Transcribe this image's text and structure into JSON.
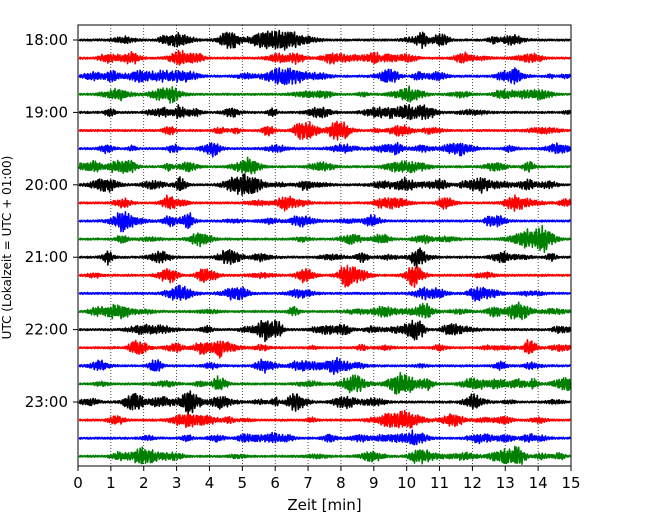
{
  "chart_data": {
    "type": "line",
    "title": "",
    "xlabel": "Zeit  [min]",
    "ylabel": "UTC (Lokalzeit = UTC + 01:00)",
    "xlim": [
      0,
      15
    ],
    "x_ticks": [
      "0",
      "1",
      "2",
      "3",
      "4",
      "5",
      "6",
      "7",
      "8",
      "9",
      "10",
      "11",
      "12",
      "13",
      "14",
      "15"
    ],
    "y_ticks": [
      "18:00",
      "19:00",
      "20:00",
      "21:00",
      "22:00",
      "23:00"
    ],
    "grid": "vertical dotted at each minute",
    "trace_interval_min": 15,
    "trace_colors": [
      "#000000",
      "#ff0000",
      "#0000ff",
      "#007f00"
    ],
    "traces": [
      {
        "start": "18:00",
        "color": "#000000"
      },
      {
        "start": "18:15",
        "color": "#ff0000"
      },
      {
        "start": "18:30",
        "color": "#0000ff"
      },
      {
        "start": "18:45",
        "color": "#007f00"
      },
      {
        "start": "19:00",
        "color": "#000000"
      },
      {
        "start": "19:15",
        "color": "#ff0000"
      },
      {
        "start": "19:30",
        "color": "#0000ff"
      },
      {
        "start": "19:45",
        "color": "#007f00"
      },
      {
        "start": "20:00",
        "color": "#000000"
      },
      {
        "start": "20:15",
        "color": "#ff0000"
      },
      {
        "start": "20:30",
        "color": "#0000ff"
      },
      {
        "start": "20:45",
        "color": "#007f00"
      },
      {
        "start": "21:00",
        "color": "#000000"
      },
      {
        "start": "21:15",
        "color": "#ff0000"
      },
      {
        "start": "21:30",
        "color": "#0000ff"
      },
      {
        "start": "21:45",
        "color": "#007f00"
      },
      {
        "start": "22:00",
        "color": "#000000"
      },
      {
        "start": "22:15",
        "color": "#ff0000"
      },
      {
        "start": "22:30",
        "color": "#0000ff"
      },
      {
        "start": "22:45",
        "color": "#007f00"
      },
      {
        "start": "23:00",
        "color": "#000000"
      },
      {
        "start": "23:15",
        "color": "#ff0000"
      },
      {
        "start": "23:30",
        "color": "#0000ff"
      },
      {
        "start": "23:45",
        "color": "#007f00"
      }
    ]
  }
}
